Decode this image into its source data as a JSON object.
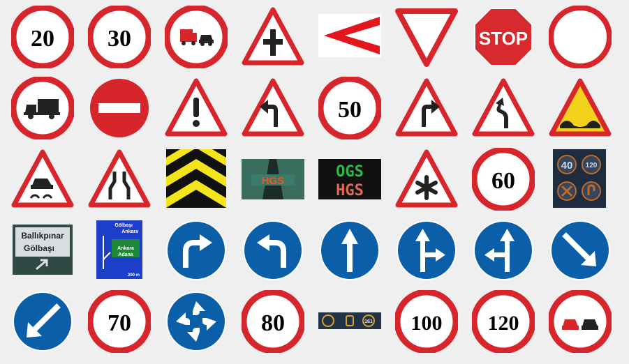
{
  "colors": {
    "background": "#efefef",
    "sign_red": "#d7262b",
    "sign_blue": "#0b5fa8",
    "sign_yellow": "#f3d21b",
    "stop_red": "#d62a2e"
  },
  "speed_limit_values": {
    "v20": "20",
    "v30": "30",
    "v50": "50",
    "v60": "60",
    "v70": "70",
    "v80": "80",
    "v100": "100",
    "v120": "120"
  },
  "stop_sign": {
    "text": "STOP"
  },
  "toll_signs": {
    "hgs_road": "HGS",
    "ogs": "OGS",
    "hgs": "HGS"
  },
  "lane_sign": {
    "left_value": "40",
    "right_value": "120"
  },
  "direction_sign": {
    "line1": "Ballıkpınar",
    "line2": "Gölbaşı"
  },
  "guide_sign": {
    "top_line1": "Gölbaşı",
    "top_line2": "Ankara",
    "bottom_line1": "Ankara",
    "bottom_line2": "Adana",
    "distance": "200 m"
  },
  "info_strip": {
    "value": "161"
  },
  "icons": [
    "speed-limit-20",
    "speed-limit-30",
    "no-overtaking-trucks",
    "crossroad-priority",
    "chevron-left",
    "yield",
    "stop",
    "no-vehicles",
    "no-trucks",
    "no-entry",
    "general-warning",
    "curve-left",
    "speed-limit-50",
    "curve-right",
    "double-curve",
    "uneven-road",
    "slippery-road",
    "road-narrows",
    "chevron-marker",
    "hgs-toll-lane",
    "ogs-hgs-display",
    "other-danger",
    "speed-limit-60",
    "lane-speed-display",
    "direction-panel",
    "guide-panel",
    "turn-right-mandatory",
    "turn-left-mandatory",
    "straight-mandatory",
    "straight-or-right",
    "straight-or-left",
    "keep-right",
    "keep-left",
    "speed-limit-70",
    "roundabout",
    "speed-limit-80",
    "info-strip",
    "speed-limit-100",
    "speed-limit-120",
    "no-overtaking"
  ]
}
